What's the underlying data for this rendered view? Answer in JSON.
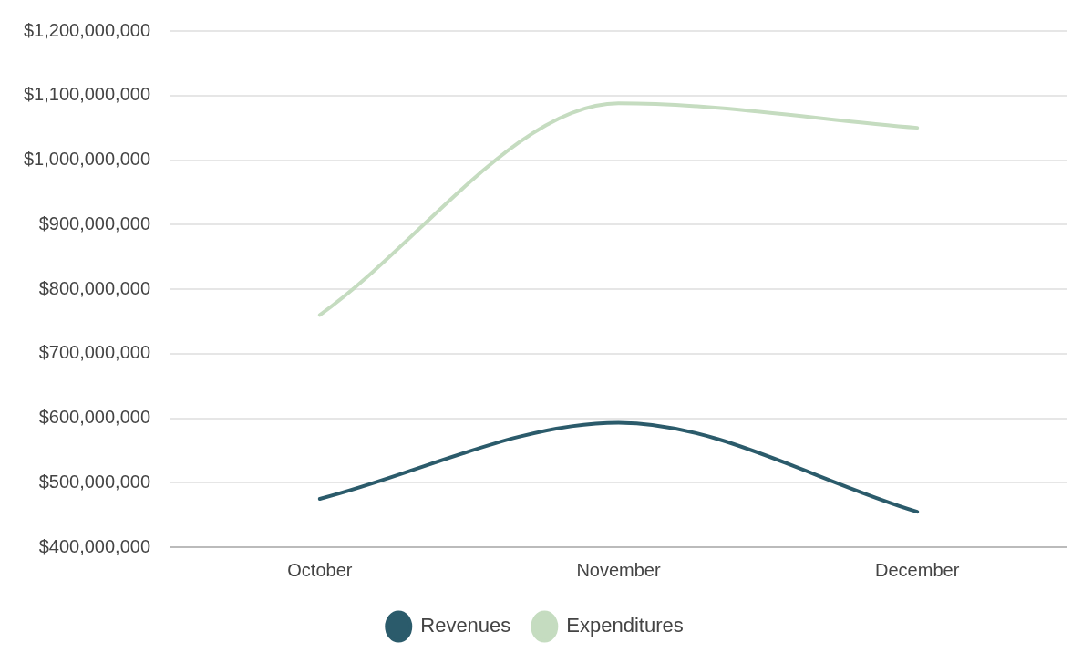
{
  "chart_data": {
    "type": "line",
    "categories": [
      "October",
      "November",
      "December"
    ],
    "series": [
      {
        "name": "Revenues",
        "color": "#2b5b6b",
        "values": [
          475000000,
          593000000,
          455000000
        ]
      },
      {
        "name": "Expenditures",
        "color": "#c5dcc0",
        "values": [
          760000000,
          1088000000,
          1050000000
        ]
      }
    ],
    "ylim": [
      400000000,
      1200000000
    ],
    "yticks": [
      {
        "value": 400000000,
        "label": "$400,000,000"
      },
      {
        "value": 500000000,
        "label": "$500,000,000"
      },
      {
        "value": 600000000,
        "label": "$600,000,000"
      },
      {
        "value": 700000000,
        "label": "$700,000,000"
      },
      {
        "value": 800000000,
        "label": "$800,000,000"
      },
      {
        "value": 900000000,
        "label": "$900,000,000"
      },
      {
        "value": 1000000000,
        "label": "$1,000,000,000"
      },
      {
        "value": 1100000000,
        "label": "$1,100,000,000"
      },
      {
        "value": 1200000000,
        "label": "$1,200,000,000"
      }
    ],
    "grid": "y",
    "legend": "bottom",
    "marker": "none",
    "line_style": "solid"
  }
}
